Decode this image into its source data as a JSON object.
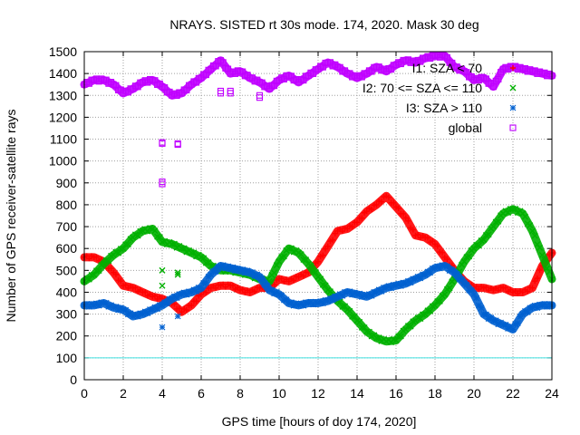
{
  "chart_data": {
    "type": "scatter",
    "title": "NRAYS. SISTED rt 30s mode. 174, 2020. Mask 30 deg",
    "xlabel": "GPS time [hours of doy 174, 2020]",
    "ylabel": "Number of GPS receiver-satellite rays",
    "xlim": [
      0,
      24
    ],
    "ylim": [
      0,
      1500
    ],
    "xticks": [
      0,
      2,
      4,
      6,
      8,
      10,
      12,
      14,
      16,
      18,
      20,
      22,
      24
    ],
    "yticks": [
      0,
      100,
      200,
      300,
      400,
      500,
      600,
      700,
      800,
      900,
      1000,
      1100,
      1200,
      1300,
      1400,
      1500
    ],
    "grid": true,
    "legend_position": "top-right",
    "reference_line": {
      "y": 100,
      "color": "#40e0e0"
    },
    "series": [
      {
        "name": "I1: SZA < 70",
        "marker": "plus",
        "color": "#ff0000",
        "x": [
          0,
          0.5,
          1,
          1.5,
          2,
          2.5,
          3,
          3.5,
          4,
          4.5,
          5,
          5.5,
          6,
          6.5,
          7,
          7.5,
          8,
          8.5,
          9,
          9.5,
          10,
          10.5,
          11,
          11.5,
          12,
          12.5,
          13,
          13.5,
          14,
          14.5,
          15,
          15.5,
          16,
          16.5,
          17,
          17.5,
          18,
          18.5,
          19,
          19.5,
          20,
          20.5,
          21,
          21.5,
          22,
          22.5,
          23,
          23.5,
          24
        ],
        "y": [
          560,
          560,
          540,
          490,
          430,
          420,
          400,
          380,
          370,
          350,
          310,
          340,
          390,
          420,
          430,
          430,
          410,
          400,
          420,
          420,
          460,
          450,
          470,
          490,
          540,
          610,
          680,
          690,
          720,
          770,
          800,
          840,
          790,
          740,
          660,
          650,
          620,
          560,
          500,
          450,
          420,
          420,
          410,
          420,
          400,
          400,
          420,
          520,
          580
        ]
      },
      {
        "name": "I2: 70 <= SZA <= 110",
        "marker": "x",
        "color": "#00b000",
        "x": [
          0,
          0.5,
          1,
          1.5,
          2,
          2.5,
          3,
          3.5,
          4,
          4.5,
          5,
          5.5,
          6,
          6.5,
          7,
          7.5,
          8,
          8.5,
          9,
          9.5,
          10,
          10.5,
          11,
          11.5,
          12,
          12.5,
          13,
          13.5,
          14,
          14.5,
          15,
          15.5,
          16,
          16.5,
          17,
          17.5,
          18,
          18.5,
          19,
          19.5,
          20,
          20.5,
          21,
          21.5,
          22,
          22.5,
          23,
          23.5,
          24
        ],
        "y": [
          450,
          480,
          530,
          570,
          600,
          650,
          680,
          690,
          630,
          620,
          600,
          580,
          560,
          520,
          500,
          500,
          490,
          480,
          460,
          450,
          540,
          600,
          580,
          530,
          470,
          410,
          360,
          320,
          270,
          220,
          190,
          175,
          180,
          230,
          270,
          300,
          340,
          390,
          460,
          540,
          600,
          640,
          700,
          760,
          780,
          760,
          680,
          570,
          460
        ]
      },
      {
        "name": "I3: SZA > 110",
        "marker": "star",
        "color": "#0060d0",
        "x": [
          0,
          0.5,
          1,
          1.5,
          2,
          2.5,
          3,
          3.5,
          4,
          4.5,
          5,
          5.5,
          6,
          6.5,
          7,
          7.5,
          8,
          8.5,
          9,
          9.5,
          10,
          10.5,
          11,
          11.5,
          12,
          12.5,
          13,
          13.5,
          14,
          14.5,
          15,
          15.5,
          16,
          16.5,
          17,
          17.5,
          18,
          18.5,
          19,
          19.5,
          20,
          20.5,
          21,
          21.5,
          22,
          22.5,
          23,
          23.5,
          24
        ],
        "y": [
          340,
          340,
          350,
          330,
          320,
          290,
          300,
          320,
          340,
          370,
          390,
          400,
          420,
          480,
          520,
          510,
          500,
          490,
          470,
          410,
          390,
          350,
          340,
          350,
          350,
          360,
          380,
          400,
          390,
          380,
          400,
          420,
          430,
          440,
          460,
          480,
          510,
          520,
          490,
          440,
          390,
          300,
          270,
          250,
          230,
          300,
          330,
          340,
          340
        ]
      },
      {
        "name": "global",
        "marker": "square",
        "color": "#c000ff",
        "x": [
          0,
          0.5,
          1,
          1.5,
          2,
          2.5,
          3,
          3.5,
          4,
          4.5,
          5,
          5.5,
          6,
          6.5,
          7,
          7.5,
          8,
          8.5,
          9,
          9.5,
          10,
          10.5,
          11,
          11.5,
          12,
          12.5,
          13,
          13.5,
          14,
          14.5,
          15,
          15.5,
          16,
          16.5,
          17,
          17.5,
          18,
          18.5,
          19,
          19.5,
          20,
          20.5,
          21,
          21.5,
          22,
          22.5,
          23,
          23.5,
          24
        ],
        "y": [
          1350,
          1370,
          1370,
          1350,
          1310,
          1330,
          1360,
          1370,
          1340,
          1300,
          1310,
          1350,
          1380,
          1420,
          1460,
          1400,
          1410,
          1380,
          1360,
          1330,
          1370,
          1390,
          1360,
          1390,
          1420,
          1450,
          1430,
          1400,
          1380,
          1400,
          1430,
          1410,
          1440,
          1460,
          1450,
          1470,
          1480,
          1480,
          1430,
          1410,
          1370,
          1380,
          1340,
          1420,
          1430,
          1420,
          1410,
          1400,
          1390
        ]
      }
    ],
    "outliers": [
      {
        "series": "I2: 70 <= SZA <= 110",
        "x": [
          4.0,
          4.0,
          4.8,
          4.8
        ],
        "y": [
          500,
          430,
          490,
          480
        ]
      },
      {
        "series": "I3: SZA > 110",
        "x": [
          4.0,
          4.8
        ],
        "y": [
          240,
          290
        ]
      },
      {
        "series": "global",
        "x": [
          4.0,
          4.0,
          4.0,
          4.0,
          4.8,
          4.8,
          7.0,
          7.0,
          7.5,
          7.5,
          9.0,
          9.0,
          21.0
        ],
        "y": [
          1085,
          1080,
          905,
          895,
          1080,
          1075,
          1320,
          1310,
          1320,
          1310,
          1300,
          1290,
          1340
        ]
      }
    ]
  }
}
